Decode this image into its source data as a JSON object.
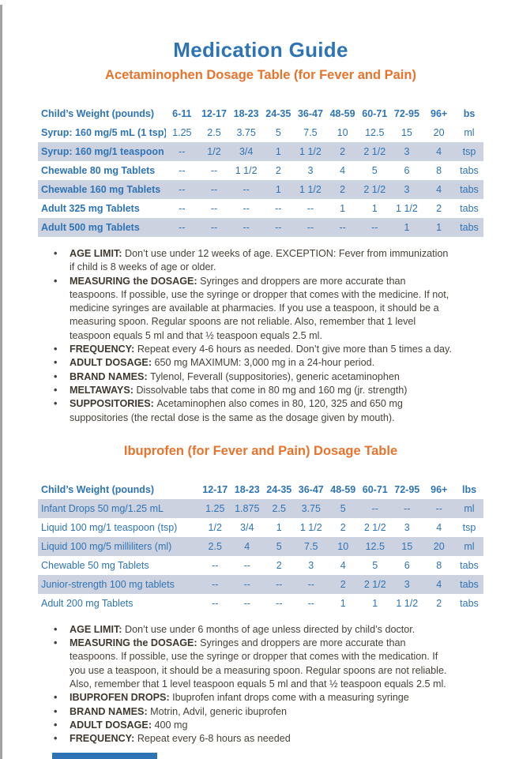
{
  "title": "Medication Guide",
  "acetaminophen": {
    "heading": "Acetaminophen Dosage Table (for Fever and Pain)",
    "table": {
      "label_header": "Child’s Weight (pounds)",
      "bold_labels": true,
      "columns": [
        "6-11",
        "12-17",
        "18-23",
        "24-35",
        "36-47",
        "48-59",
        "60-71",
        "72-95",
        "96+",
        "bs"
      ],
      "rows": [
        {
          "label": "Syrup: 160 mg/5 mL (1 tsp)",
          "values": [
            "1.25",
            "2.5",
            "3.75",
            "5",
            "7.5",
            "10",
            "12.5",
            "15",
            "20"
          ],
          "unit": "ml"
        },
        {
          "label": "Syrup: 160 mg/1 teaspoon",
          "values": [
            "--",
            "1/2",
            "3/4",
            "1",
            "1 1/2",
            "2",
            "2 1/2",
            "3",
            "4"
          ],
          "unit": "tsp"
        },
        {
          "label": "Chewable 80 mg Tablets",
          "values": [
            "--",
            "--",
            "1 1/2",
            "2",
            "3",
            "4",
            "5",
            "6",
            "8"
          ],
          "unit": "tabs"
        },
        {
          "label": "Chewable 160 mg Tablets",
          "values": [
            "--",
            "--",
            "--",
            "1",
            "1 1/2",
            "2",
            "2 1/2",
            "3",
            "4"
          ],
          "unit": "tabs"
        },
        {
          "label": "Adult 325 mg Tablets",
          "values": [
            "--",
            "--",
            "--",
            "--",
            "--",
            "1",
            "1",
            "1 1/2",
            "2"
          ],
          "unit": "tabs"
        },
        {
          "label": "Adult 500 mg Tablets",
          "values": [
            "--",
            "--",
            "--",
            "--",
            "--",
            "--",
            "--",
            "1",
            "1"
          ],
          "unit": "tabs"
        }
      ]
    },
    "notes": [
      {
        "label": "AGE LIMIT:",
        "text": "Don’t use under 12 weeks of age. EXCEPTION: Fever from immunization if child is 8 weeks of age or older."
      },
      {
        "label": "MEASURING the DOSAGE:",
        "text": "Syringes and droppers are more accurate than teaspoons. If possible, use the syringe or dropper that comes with the medicine. If not, medicine syringes are available at pharmacies. If you use a teaspoon, it should be a measuring spoon. Regular spoons are not reliable. Also, remember that 1 level teaspoon equals 5 ml and that ½ teaspoon equals 2.5 ml."
      },
      {
        "label": "FREQUENCY:",
        "text": "Repeat every 4-6 hours as needed. Don’t give more than 5 times a day."
      },
      {
        "label": "ADULT DOSAGE:",
        "text": "650 mg MAXIMUM: 3,000 mg in a 24-hour period."
      },
      {
        "label": "BRAND NAMES:",
        "text": "Tylenol, Feverall (suppositories), generic acetaminophen"
      },
      {
        "label": "MELTAWAYS:",
        "text": "Dissolvable tabs that come in 80 mg and 160 mg (jr. strength)"
      },
      {
        "label": "SUPPOSITORIES:",
        "text": "Acetaminophen also comes in 80, 120, 325 and 650 mg suppositories (the rectal dose is the same as the dosage given by mouth)."
      }
    ]
  },
  "ibuprofen": {
    "heading": "Ibuprofen (for Fever and Pain) Dosage Table",
    "table": {
      "label_header": "Child’s Weight (pounds)",
      "bold_labels": false,
      "columns": [
        "12-17",
        "18-23",
        "24-35",
        "36-47",
        "48-59",
        "60-71",
        "72-95",
        "96+",
        "lbs"
      ],
      "rows": [
        {
          "label": "Infant Drops 50 mg/1.25 mL",
          "values": [
            "1.25",
            "1.875",
            "2.5",
            "3.75",
            "5",
            "--",
            "--",
            "--"
          ],
          "unit": "ml"
        },
        {
          "label": "Liquid 100 mg/1 teaspoon (tsp)",
          "values": [
            "1/2",
            "3/4",
            "1",
            "1 1/2",
            "2",
            "2 1/2",
            "3",
            "4"
          ],
          "unit": "tsp"
        },
        {
          "label": "Liquid 100 mg/5 milliliters (ml)",
          "values": [
            "2.5",
            "4",
            "5",
            "7.5",
            "10",
            "12.5",
            "15",
            "20"
          ],
          "unit": "ml"
        },
        {
          "label": "Chewable 50 mg Tablets",
          "values": [
            "--",
            "--",
            "2",
            "3",
            "4",
            "5",
            "6",
            "8"
          ],
          "unit": "tabs"
        },
        {
          "label": "Junior-strength 100 mg tablets",
          "values": [
            "--",
            "--",
            "--",
            "--",
            "2",
            "2 1/2",
            "3",
            "4"
          ],
          "unit": "tabs"
        },
        {
          "label": "Adult 200 mg Tablets",
          "values": [
            "--",
            "--",
            "--",
            "--",
            "1",
            "1",
            "1 1/2",
            "2"
          ],
          "unit": "tabs"
        }
      ]
    },
    "notes": [
      {
        "label": "AGE LIMIT:",
        "text": "Don’t use under 6 months of age unless directed by child’s doctor."
      },
      {
        "label": "MEASURING the DOSAGE:",
        "text": "Syringes and droppers are more accurate than teaspoons. If possible, use the syringe or dropper that comes with the medication. If you use a teaspoon, it should be a measuring spoon. Regular spoons are not reliable. Also, remember that 1 level teaspoon equals 5 ml and that ½ teaspoon equals 2.5 ml."
      },
      {
        "label": "IBUPROFEN DROPS:",
        "text": "Ibuprofen infant drops come with a measuring syringe"
      },
      {
        "label": "BRAND NAMES:",
        "text": "Motrin, Advil, generic ibuprofen"
      },
      {
        "label": "ADULT DOSAGE:",
        "text": "400 mg"
      },
      {
        "label": "FREQUENCY:",
        "text": "Repeat every 6-8 hours as needed"
      }
    ]
  },
  "colors": {
    "heading_blue": "#2e74b5",
    "heading_orange": "#e8732c",
    "row_shade": "#cdd2e1"
  }
}
